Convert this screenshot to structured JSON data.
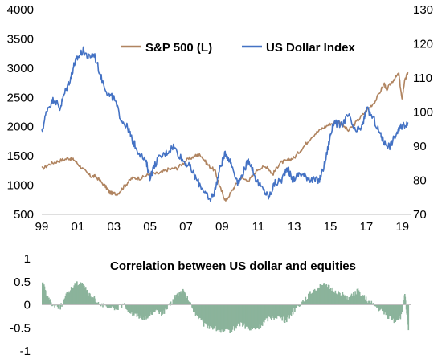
{
  "chart_data": [
    {
      "type": "line",
      "x_label": "",
      "xticks": [
        "99",
        "01",
        "03",
        "05",
        "07",
        "09",
        "11",
        "13",
        "15",
        "17",
        "19"
      ],
      "ylim_left": [
        500,
        4000
      ],
      "yticks_left": [
        "500",
        "1000",
        "1500",
        "2000",
        "2500",
        "3000",
        "3500",
        "4000"
      ],
      "ylim_right": [
        70,
        130
      ],
      "yticks_right": [
        "70",
        "80",
        "90",
        "100",
        "110",
        "120",
        "130"
      ],
      "legend": "top-right",
      "grid": false,
      "series": [
        {
          "name": "S&P 500 (L)",
          "axis": "left",
          "color": "#B08460",
          "x": [
            1999.0,
            1999.5,
            2000.0,
            2000.5,
            2000.8,
            2001.2,
            2001.7,
            2002.0,
            2002.5,
            2002.8,
            2003.2,
            2003.6,
            2004.0,
            2004.5,
            2005.0,
            2005.5,
            2006.0,
            2006.5,
            2007.0,
            2007.5,
            2007.8,
            2008.2,
            2008.6,
            2008.9,
            2009.2,
            2009.6,
            2010.0,
            2010.5,
            2011.0,
            2011.5,
            2011.8,
            2012.2,
            2012.6,
            2013.0,
            2013.5,
            2014.0,
            2014.5,
            2015.0,
            2015.5,
            2016.0,
            2016.5,
            2017.0,
            2017.5,
            2018.0,
            2018.1,
            2018.5,
            2018.8,
            2018.98,
            2019.1,
            2019.3
          ],
          "y": [
            1280,
            1370,
            1420,
            1460,
            1430,
            1300,
            1150,
            1150,
            990,
            870,
            850,
            990,
            1120,
            1120,
            1190,
            1200,
            1270,
            1290,
            1420,
            1500,
            1520,
            1350,
            1250,
            950,
            730,
            930,
            1120,
            1080,
            1280,
            1320,
            1180,
            1380,
            1420,
            1470,
            1650,
            1840,
            1960,
            2050,
            2080,
            1930,
            2100,
            2270,
            2440,
            2740,
            2620,
            2800,
            2900,
            2450,
            2750,
            2930
          ]
        },
        {
          "name": "US Dollar Index",
          "axis": "right",
          "color": "#4472C4",
          "x": [
            1999.0,
            1999.3,
            1999.7,
            2000.0,
            2000.3,
            2000.6,
            2000.8,
            2001.0,
            2001.3,
            2001.6,
            2001.9,
            2002.3,
            2002.7,
            2003.0,
            2003.4,
            2003.8,
            2004.0,
            2004.3,
            2004.8,
            2005.0,
            2005.4,
            2005.9,
            2006.3,
            2006.8,
            2007.2,
            2007.6,
            2008.0,
            2008.3,
            2008.6,
            2008.9,
            2009.2,
            2009.5,
            2009.9,
            2010.3,
            2010.5,
            2010.9,
            2011.3,
            2011.6,
            2011.9,
            2012.3,
            2012.6,
            2012.9,
            2013.3,
            2013.7,
            2014.0,
            2014.4,
            2014.7,
            2015.0,
            2015.2,
            2015.6,
            2016.0,
            2016.4,
            2016.8,
            2017.0,
            2017.4,
            2017.8,
            2018.0,
            2018.3,
            2018.7,
            2019.0,
            2019.3
          ],
          "y": [
            94,
            101,
            104,
            101,
            106,
            110,
            114,
            116,
            118,
            116,
            117,
            110,
            105,
            104,
            98,
            95,
            92,
            89,
            85,
            81,
            86,
            88,
            90,
            86,
            84,
            80,
            77,
            74,
            77,
            84,
            88,
            85,
            79,
            84,
            86,
            80,
            77,
            75,
            79,
            80,
            84,
            80,
            82,
            81,
            80,
            80,
            85,
            93,
            97,
            96,
            99,
            94,
            96,
            101,
            98,
            93,
            91,
            90,
            94,
            96,
            97
          ]
        }
      ]
    },
    {
      "type": "area",
      "title": "Correlation between US dollar and equities",
      "ylim": [
        -1,
        1
      ],
      "yticks": [
        "1",
        "0.5",
        "0",
        "-0.5",
        "-1"
      ],
      "color": "#8BB39B",
      "x": [
        1999.0,
        1999.3,
        1999.6,
        2000.0,
        2000.4,
        2000.8,
        2001.2,
        2001.6,
        2002.0,
        2002.5,
        2003.0,
        2003.5,
        2004.0,
        2004.4,
        2004.8,
        2005.2,
        2005.6,
        2006.0,
        2006.4,
        2006.8,
        2007.1,
        2007.5,
        2008.0,
        2008.5,
        2009.0,
        2009.5,
        2010.0,
        2010.5,
        2011.0,
        2011.5,
        2012.0,
        2012.5,
        2013.0,
        2013.5,
        2014.0,
        2014.5,
        2015.0,
        2015.5,
        2016.0,
        2016.5,
        2017.0,
        2017.5,
        2018.0,
        2018.5,
        2018.9,
        2019.1,
        2019.3
      ],
      "y": [
        0.5,
        0.15,
        0.0,
        -0.05,
        0.25,
        0.45,
        0.5,
        0.2,
        0.1,
        -0.05,
        -0.1,
        0.0,
        -0.2,
        -0.25,
        -0.3,
        -0.1,
        -0.2,
        -0.05,
        0.2,
        0.3,
        0.1,
        -0.2,
        -0.45,
        -0.5,
        -0.6,
        -0.55,
        -0.4,
        -0.55,
        -0.5,
        -0.3,
        -0.25,
        -0.35,
        -0.1,
        0.1,
        0.3,
        0.45,
        0.35,
        0.25,
        0.15,
        0.3,
        0.1,
        -0.05,
        -0.2,
        -0.35,
        -0.25,
        0.2,
        -0.55
      ]
    }
  ]
}
